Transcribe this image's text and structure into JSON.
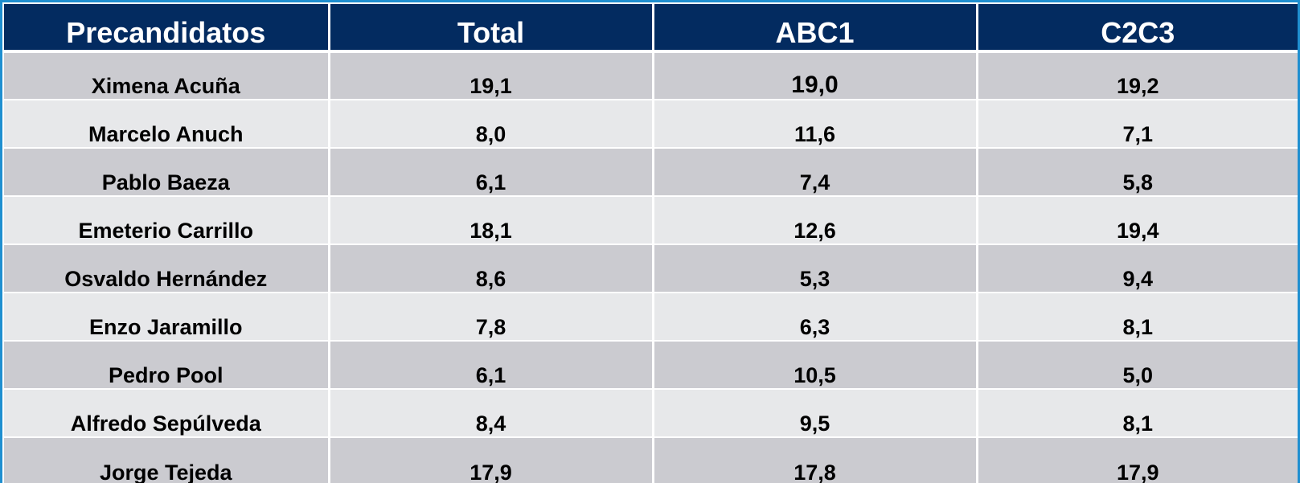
{
  "table": {
    "headers": [
      "Precandidatos",
      "Total",
      "ABC1",
      "C2C3"
    ],
    "rows": [
      {
        "name": "Ximena Acuña",
        "total": "19,1",
        "abc1": "19,0",
        "c2c3": "19,2"
      },
      {
        "name": "Marcelo Anuch",
        "total": "8,0",
        "abc1": "11,6",
        "c2c3": "7,1"
      },
      {
        "name": "Pablo Baeza",
        "total": "6,1",
        "abc1": "7,4",
        "c2c3": "5,8"
      },
      {
        "name": "Emeterio Carrillo",
        "total": "18,1",
        "abc1": "12,6",
        "c2c3": "19,4"
      },
      {
        "name": "Osvaldo Hernández",
        "total": "8,6",
        "abc1": "5,3",
        "c2c3": "9,4"
      },
      {
        "name": "Enzo Jaramillo",
        "total": "7,8",
        "abc1": "6,3",
        "c2c3": "8,1"
      },
      {
        "name": "Pedro Pool",
        "total": "6,1",
        "abc1": "10,5",
        "c2c3": "5,0"
      },
      {
        "name": "Alfredo Sepúlveda",
        "total": "8,4",
        "abc1": "9,5",
        "c2c3": "8,1"
      },
      {
        "name": "Jorge Tejeda",
        "total": "17,9",
        "abc1": "17,8",
        "c2c3": "17,9"
      }
    ]
  },
  "colors": {
    "header_bg": "#032b60",
    "row_odd_bg": "#cbcbd0",
    "row_even_bg": "#e7e8ea",
    "frame_border": "#1f8fd0"
  }
}
